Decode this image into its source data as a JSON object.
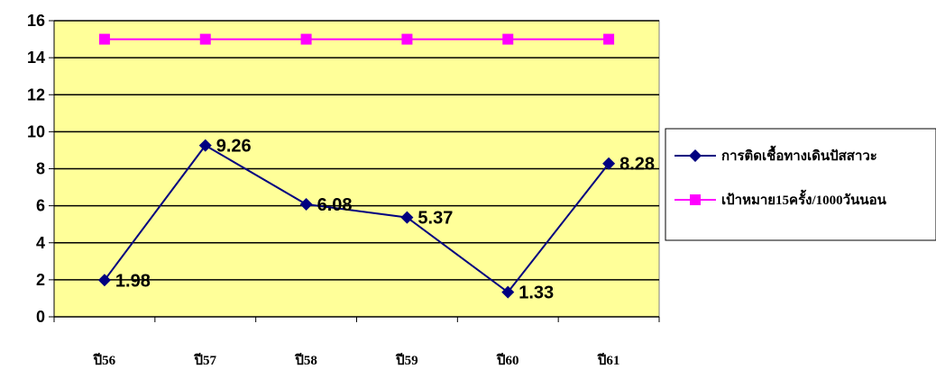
{
  "chart_data": {
    "type": "line",
    "categories": [
      "ปี56",
      "ปี57",
      "ปี58",
      "ปี59",
      "ปี60",
      "ปี61"
    ],
    "series": [
      {
        "name": "การติดเชื้อทางเดินปัสสาวะ",
        "values": [
          1.98,
          9.26,
          6.08,
          5.37,
          1.33,
          8.28
        ],
        "data_labels": [
          "1.98",
          "9.26",
          "6.08",
          "5.37",
          "1.33",
          "8.28"
        ],
        "color": "#000080",
        "marker": "diamond"
      },
      {
        "name": "เป้าหมาย15ครั้ง/1000วันนอน",
        "values": [
          15,
          15,
          15,
          15,
          15,
          15
        ],
        "color": "#ff00ff",
        "marker": "square"
      }
    ],
    "ylim": [
      0,
      16
    ],
    "yticks": [
      "0",
      "2",
      "4",
      "6",
      "8",
      "10",
      "12",
      "14",
      "16"
    ],
    "grid": true,
    "legend": "right",
    "plot_background": "#ffff99"
  }
}
